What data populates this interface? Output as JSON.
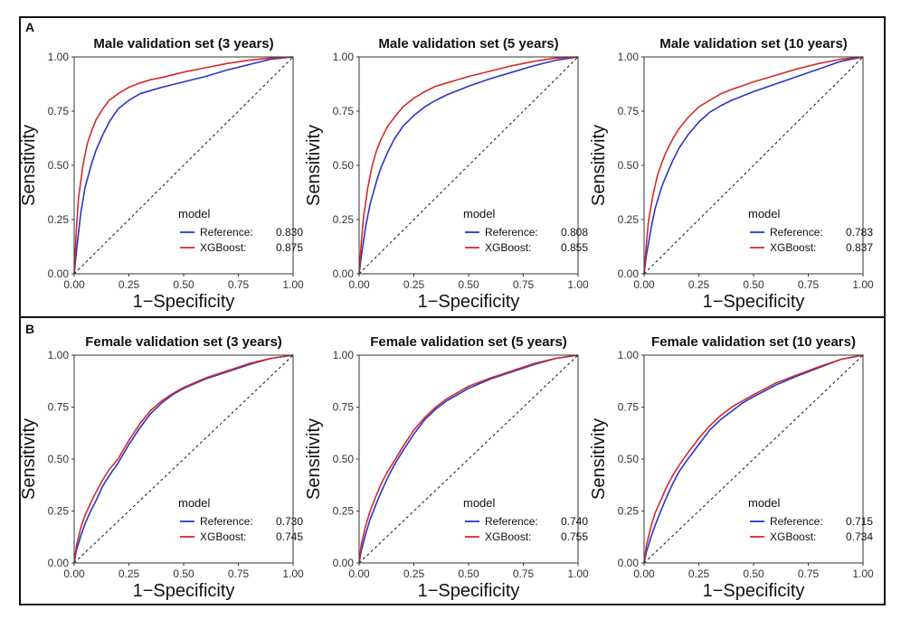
{
  "panels": [
    {
      "label": "A"
    },
    {
      "label": "B"
    }
  ],
  "chart_data": [
    {
      "type": "line",
      "title": "Male validation set (3 years)",
      "xlabel": "1−Specificity",
      "ylabel": "Sensitivity",
      "xlim": [
        0,
        1
      ],
      "ylim": [
        0,
        1
      ],
      "xticks": [
        "0.00",
        "0.25",
        "0.50",
        "0.75",
        "1.00"
      ],
      "yticks": [
        "0.00",
        "0.25",
        "0.50",
        "0.75",
        "1.00"
      ],
      "legend_title": "model",
      "legend_position": "bottom-right",
      "diagonal": "dashed",
      "series": [
        {
          "name": "Reference",
          "auc": "0.830",
          "color": "#2b35c8",
          "x": [
            0,
            0.01,
            0.03,
            0.05,
            0.08,
            0.1,
            0.13,
            0.16,
            0.2,
            0.25,
            0.3,
            0.35,
            0.4,
            0.5,
            0.6,
            0.7,
            0.8,
            0.9,
            1.0
          ],
          "y": [
            0,
            0.1,
            0.28,
            0.4,
            0.51,
            0.57,
            0.64,
            0.7,
            0.76,
            0.8,
            0.83,
            0.845,
            0.86,
            0.885,
            0.91,
            0.94,
            0.965,
            0.99,
            1.0
          ]
        },
        {
          "name": "XGBoost",
          "auc": "0.875",
          "color": "#d42a2a",
          "x": [
            0,
            0.01,
            0.02,
            0.04,
            0.06,
            0.08,
            0.1,
            0.13,
            0.16,
            0.2,
            0.25,
            0.3,
            0.35,
            0.4,
            0.5,
            0.6,
            0.7,
            0.8,
            0.9,
            1.0
          ],
          "y": [
            0,
            0.2,
            0.35,
            0.5,
            0.6,
            0.66,
            0.71,
            0.76,
            0.8,
            0.83,
            0.86,
            0.88,
            0.895,
            0.905,
            0.93,
            0.95,
            0.97,
            0.985,
            0.995,
            1.0
          ]
        }
      ]
    },
    {
      "type": "line",
      "title": "Male validation set (5 years)",
      "xlabel": "1−Specificity",
      "ylabel": "Sensitivity",
      "xlim": [
        0,
        1
      ],
      "ylim": [
        0,
        1
      ],
      "xticks": [
        "0.00",
        "0.25",
        "0.50",
        "0.75",
        "1.00"
      ],
      "yticks": [
        "0.00",
        "0.25",
        "0.50",
        "0.75",
        "1.00"
      ],
      "legend_title": "model",
      "legend_position": "bottom-right",
      "diagonal": "dashed",
      "series": [
        {
          "name": "Reference",
          "auc": "0.808",
          "color": "#2b35c8",
          "x": [
            0,
            0.01,
            0.03,
            0.05,
            0.08,
            0.1,
            0.13,
            0.16,
            0.2,
            0.25,
            0.3,
            0.35,
            0.4,
            0.5,
            0.6,
            0.7,
            0.8,
            0.9,
            1.0
          ],
          "y": [
            0,
            0.08,
            0.22,
            0.32,
            0.43,
            0.49,
            0.56,
            0.62,
            0.68,
            0.73,
            0.77,
            0.8,
            0.825,
            0.865,
            0.9,
            0.93,
            0.96,
            0.985,
            1.0
          ]
        },
        {
          "name": "XGBoost",
          "auc": "0.855",
          "color": "#d42a2a",
          "x": [
            0,
            0.01,
            0.02,
            0.04,
            0.06,
            0.08,
            0.1,
            0.13,
            0.16,
            0.2,
            0.25,
            0.3,
            0.35,
            0.4,
            0.5,
            0.6,
            0.7,
            0.8,
            0.9,
            1.0
          ],
          "y": [
            0,
            0.14,
            0.26,
            0.4,
            0.5,
            0.57,
            0.62,
            0.68,
            0.72,
            0.77,
            0.81,
            0.84,
            0.865,
            0.88,
            0.91,
            0.935,
            0.96,
            0.98,
            0.995,
            1.0
          ]
        }
      ]
    },
    {
      "type": "line",
      "title": "Male validation set (10 years)",
      "xlabel": "1−Specificity",
      "ylabel": "Sensitivity",
      "xlim": [
        0,
        1
      ],
      "ylim": [
        0,
        1
      ],
      "xticks": [
        "0.00",
        "0.25",
        "0.50",
        "0.75",
        "1.00"
      ],
      "yticks": [
        "0.00",
        "0.25",
        "0.50",
        "0.75",
        "1.00"
      ],
      "legend_title": "model",
      "legend_position": "bottom-right",
      "diagonal": "dashed",
      "series": [
        {
          "name": "Reference",
          "auc": "0.783",
          "color": "#2b35c8",
          "x": [
            0,
            0.01,
            0.03,
            0.05,
            0.08,
            0.1,
            0.13,
            0.16,
            0.2,
            0.25,
            0.3,
            0.35,
            0.4,
            0.5,
            0.6,
            0.7,
            0.8,
            0.9,
            1.0
          ],
          "y": [
            0,
            0.08,
            0.2,
            0.3,
            0.4,
            0.45,
            0.52,
            0.58,
            0.64,
            0.7,
            0.745,
            0.775,
            0.8,
            0.84,
            0.875,
            0.91,
            0.945,
            0.98,
            1.0
          ]
        },
        {
          "name": "XGBoost",
          "auc": "0.837",
          "color": "#d42a2a",
          "x": [
            0,
            0.01,
            0.02,
            0.04,
            0.06,
            0.08,
            0.1,
            0.13,
            0.16,
            0.2,
            0.25,
            0.3,
            0.35,
            0.4,
            0.5,
            0.6,
            0.7,
            0.8,
            0.9,
            1.0
          ],
          "y": [
            0,
            0.13,
            0.24,
            0.36,
            0.45,
            0.51,
            0.56,
            0.62,
            0.67,
            0.72,
            0.77,
            0.8,
            0.83,
            0.85,
            0.885,
            0.915,
            0.945,
            0.97,
            0.99,
            1.0
          ]
        }
      ]
    },
    {
      "type": "line",
      "title": "Female validation set (3 years)",
      "xlabel": "1−Specificity",
      "ylabel": "Sensitivity",
      "xlim": [
        0,
        1
      ],
      "ylim": [
        0,
        1
      ],
      "xticks": [
        "0.00",
        "0.25",
        "0.50",
        "0.75",
        "1.00"
      ],
      "yticks": [
        "0.00",
        "0.25",
        "0.50",
        "0.75",
        "1.00"
      ],
      "legend_title": "model",
      "legend_position": "bottom-right",
      "diagonal": "dashed",
      "series": [
        {
          "name": "Reference",
          "auc": "0.730",
          "color": "#2b35c8",
          "x": [
            0,
            0.01,
            0.03,
            0.05,
            0.08,
            0.1,
            0.13,
            0.16,
            0.2,
            0.25,
            0.3,
            0.35,
            0.4,
            0.45,
            0.5,
            0.6,
            0.7,
            0.8,
            0.9,
            1.0
          ],
          "y": [
            0,
            0.06,
            0.13,
            0.19,
            0.26,
            0.3,
            0.37,
            0.42,
            0.48,
            0.57,
            0.65,
            0.72,
            0.77,
            0.81,
            0.84,
            0.885,
            0.92,
            0.955,
            0.985,
            1.0
          ]
        },
        {
          "name": "XGBoost",
          "auc": "0.745",
          "color": "#d42a2a",
          "x": [
            0,
            0.01,
            0.03,
            0.05,
            0.08,
            0.1,
            0.13,
            0.16,
            0.2,
            0.25,
            0.3,
            0.35,
            0.4,
            0.45,
            0.5,
            0.6,
            0.7,
            0.8,
            0.9,
            1.0
          ],
          "y": [
            0,
            0.08,
            0.17,
            0.23,
            0.3,
            0.34,
            0.4,
            0.45,
            0.5,
            0.59,
            0.67,
            0.735,
            0.78,
            0.815,
            0.845,
            0.89,
            0.925,
            0.96,
            0.985,
            1.0
          ]
        }
      ]
    },
    {
      "type": "line",
      "title": "Female validation set (5 years)",
      "xlabel": "1−Specificity",
      "ylabel": "Sensitivity",
      "xlim": [
        0,
        1
      ],
      "ylim": [
        0,
        1
      ],
      "xticks": [
        "0.00",
        "0.25",
        "0.50",
        "0.75",
        "1.00"
      ],
      "yticks": [
        "0.00",
        "0.25",
        "0.50",
        "0.75",
        "1.00"
      ],
      "legend_title": "model",
      "legend_position": "bottom-right",
      "diagonal": "dashed",
      "series": [
        {
          "name": "Reference",
          "auc": "0.740",
          "color": "#2b35c8",
          "x": [
            0,
            0.01,
            0.03,
            0.05,
            0.08,
            0.1,
            0.13,
            0.16,
            0.2,
            0.25,
            0.3,
            0.35,
            0.4,
            0.45,
            0.5,
            0.6,
            0.7,
            0.8,
            0.9,
            1.0
          ],
          "y": [
            0,
            0.06,
            0.14,
            0.21,
            0.29,
            0.34,
            0.41,
            0.47,
            0.54,
            0.62,
            0.69,
            0.74,
            0.78,
            0.81,
            0.84,
            0.885,
            0.92,
            0.955,
            0.985,
            1.0
          ]
        },
        {
          "name": "XGBoost",
          "auc": "0.755",
          "color": "#d42a2a",
          "x": [
            0,
            0.01,
            0.03,
            0.05,
            0.08,
            0.1,
            0.13,
            0.16,
            0.2,
            0.25,
            0.3,
            0.35,
            0.4,
            0.45,
            0.5,
            0.6,
            0.7,
            0.8,
            0.9,
            1.0
          ],
          "y": [
            0,
            0.09,
            0.18,
            0.25,
            0.33,
            0.38,
            0.44,
            0.49,
            0.56,
            0.64,
            0.7,
            0.75,
            0.79,
            0.82,
            0.85,
            0.89,
            0.925,
            0.96,
            0.985,
            1.0
          ]
        }
      ]
    },
    {
      "type": "line",
      "title": "Female validation set (10 years)",
      "xlabel": "1−Specificity",
      "ylabel": "Sensitivity",
      "xlim": [
        0,
        1
      ],
      "ylim": [
        0,
        1
      ],
      "xticks": [
        "0.00",
        "0.25",
        "0.50",
        "0.75",
        "1.00"
      ],
      "yticks": [
        "0.00",
        "0.25",
        "0.50",
        "0.75",
        "1.00"
      ],
      "legend_title": "model",
      "legend_position": "bottom-right",
      "diagonal": "dashed",
      "series": [
        {
          "name": "Reference",
          "auc": "0.715",
          "color": "#2b35c8",
          "x": [
            0,
            0.01,
            0.03,
            0.05,
            0.08,
            0.1,
            0.13,
            0.16,
            0.2,
            0.25,
            0.3,
            0.35,
            0.4,
            0.45,
            0.5,
            0.6,
            0.7,
            0.8,
            0.9,
            1.0
          ],
          "y": [
            0,
            0.05,
            0.12,
            0.18,
            0.26,
            0.31,
            0.38,
            0.44,
            0.5,
            0.57,
            0.64,
            0.69,
            0.73,
            0.77,
            0.8,
            0.855,
            0.9,
            0.94,
            0.98,
            1.0
          ]
        },
        {
          "name": "XGBoost",
          "auc": "0.734",
          "color": "#d42a2a",
          "x": [
            0,
            0.01,
            0.03,
            0.05,
            0.08,
            0.1,
            0.13,
            0.16,
            0.2,
            0.25,
            0.3,
            0.35,
            0.4,
            0.45,
            0.5,
            0.6,
            0.7,
            0.8,
            0.9,
            1.0
          ],
          "y": [
            0,
            0.08,
            0.17,
            0.24,
            0.31,
            0.36,
            0.42,
            0.47,
            0.53,
            0.6,
            0.66,
            0.71,
            0.75,
            0.78,
            0.81,
            0.865,
            0.905,
            0.945,
            0.98,
            1.0
          ]
        }
      ]
    }
  ]
}
